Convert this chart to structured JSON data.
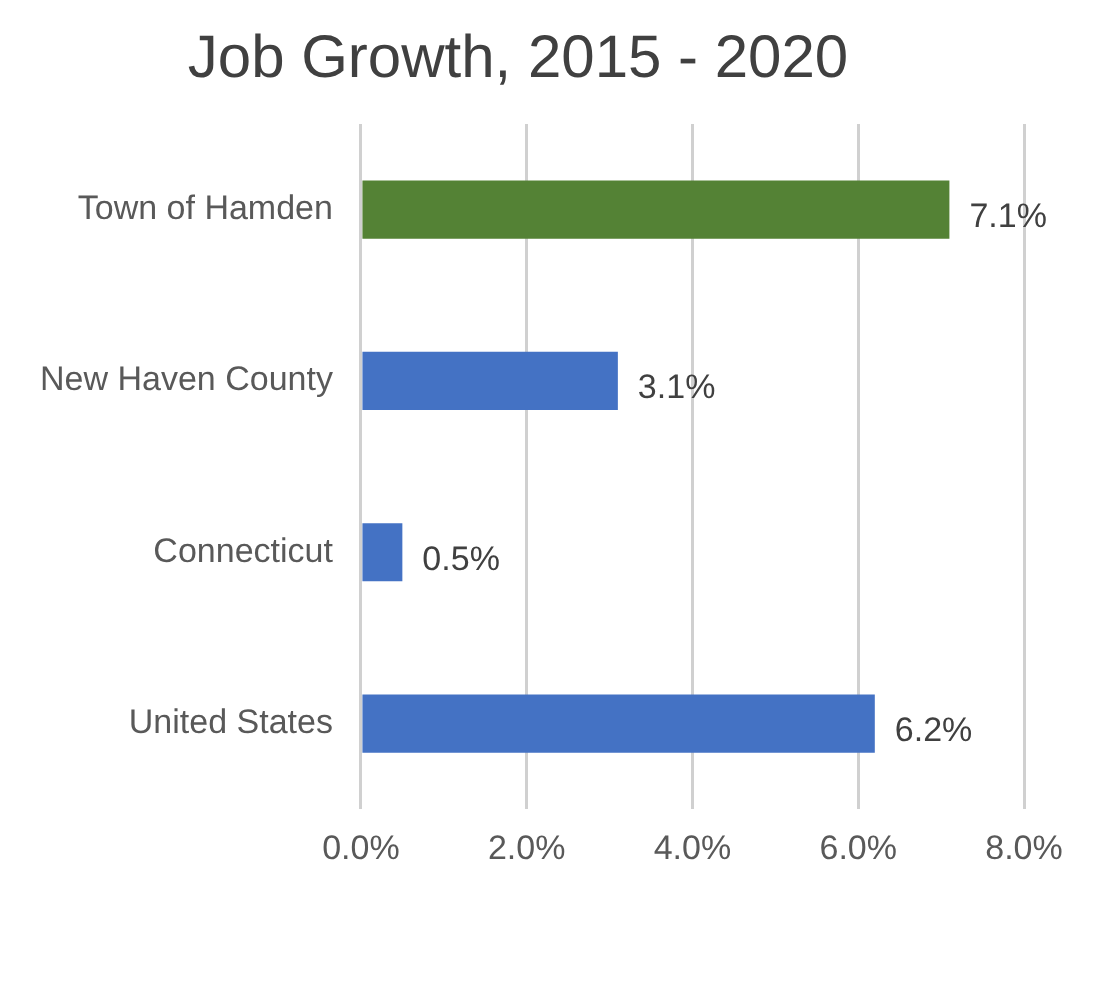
{
  "chart_data": {
    "type": "bar",
    "orientation": "horizontal",
    "title": "Job Growth, 2015 - 2020",
    "categories": [
      "Town of Hamden",
      "New Haven County",
      "Connecticut",
      "United States"
    ],
    "values": [
      7.1,
      3.1,
      0.5,
      6.2
    ],
    "colors": [
      "#548235",
      "#4472c4",
      "#4472c4",
      "#4472c4"
    ],
    "value_labels": [
      "7.1%",
      "3.1%",
      "0.5%",
      "6.2%"
    ],
    "xlim": [
      0,
      8
    ],
    "xticks": [
      {
        "value": 0,
        "label": "0.0%"
      },
      {
        "value": 2,
        "label": "2.0%"
      },
      {
        "value": 4,
        "label": "4.0%"
      },
      {
        "value": 6,
        "label": "6.0%"
      },
      {
        "value": 8,
        "label": "8.0%"
      }
    ],
    "grid": "x",
    "legend": false
  }
}
